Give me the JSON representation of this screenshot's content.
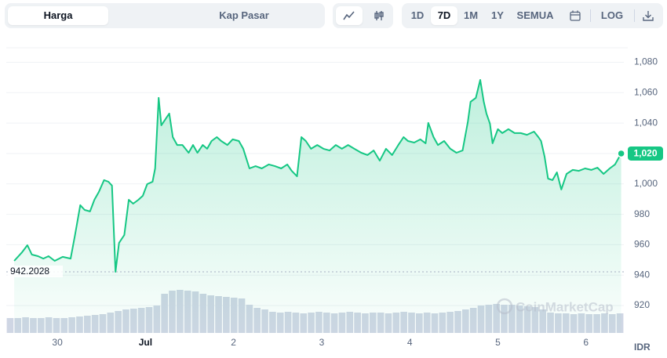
{
  "controls": {
    "tabs": [
      "Harga",
      "Kap Pasar"
    ],
    "ranges": [
      "1D",
      "7D",
      "1M",
      "1Y",
      "SEMUA"
    ],
    "log": "LOG"
  },
  "chart_data": {
    "type": "line",
    "color": "#16c784",
    "x": [
      -0.49,
      -0.4,
      -0.34,
      -0.29,
      -0.22,
      -0.16,
      -0.1,
      -0.03,
      0.06,
      0.15,
      0.2,
      0.26,
      0.31,
      0.37,
      0.42,
      0.47,
      0.53,
      0.58,
      0.62,
      0.66,
      0.7,
      0.76,
      0.81,
      0.86,
      0.92,
      0.97,
      1.02,
      1.08,
      1.11,
      1.15,
      1.18,
      1.24,
      1.27,
      1.31,
      1.36,
      1.42,
      1.49,
      1.54,
      1.59,
      1.65,
      1.7,
      1.75,
      1.81,
      1.86,
      1.93,
      1.99,
      2.06,
      2.11,
      2.18,
      2.25,
      2.32,
      2.4,
      2.47,
      2.54,
      2.61,
      2.66,
      2.72,
      2.77,
      2.82,
      2.88,
      2.95,
      3.02,
      3.09,
      3.16,
      3.23,
      3.3,
      3.37,
      3.45,
      3.52,
      3.59,
      3.66,
      3.73,
      3.8,
      3.87,
      3.93,
      3.98,
      4.05,
      4.12,
      4.18,
      4.21,
      4.27,
      4.32,
      4.39,
      4.46,
      4.53,
      4.6,
      4.66,
      4.69,
      4.75,
      4.8,
      4.84,
      4.87,
      4.91,
      4.94,
      5.0,
      5.05,
      5.12,
      5.19,
      5.26,
      5.33,
      5.41,
      5.46,
      5.49,
      5.53,
      5.57,
      5.62,
      5.67,
      5.72,
      5.78,
      5.85,
      5.92,
      5.99,
      6.06,
      6.13,
      6.2,
      6.27,
      6.33,
      6.4
    ],
    "values": [
      949.4,
      955.1,
      959.7,
      953.5,
      952.5,
      950.9,
      952.5,
      949.4,
      952.0,
      950.9,
      966.4,
      986.0,
      982.9,
      981.9,
      989.6,
      994.7,
      1002.5,
      1001.4,
      998.9,
      942.2028,
      961.2,
      966.4,
      989.6,
      987.0,
      989.6,
      992.2,
      999.9,
      1001.4,
      1010.2,
      1056.6,
      1038.5,
      1043.7,
      1046.3,
      1030.8,
      1025.6,
      1025.6,
      1020.5,
      1025.6,
      1020.5,
      1025.6,
      1023.1,
      1028.2,
      1030.8,
      1028.2,
      1025.6,
      1029.3,
      1028.2,
      1023.1,
      1010.2,
      1011.7,
      1010.2,
      1012.8,
      1011.7,
      1010.2,
      1012.8,
      1008.6,
      1005.0,
      1030.8,
      1028.2,
      1023.1,
      1025.6,
      1023.1,
      1022.0,
      1025.6,
      1023.1,
      1025.6,
      1023.1,
      1020.5,
      1019.0,
      1022.0,
      1015.3,
      1023.1,
      1019.0,
      1025.6,
      1030.8,
      1028.2,
      1027.2,
      1029.3,
      1026.7,
      1040.1,
      1030.8,
      1025.6,
      1028.2,
      1023.1,
      1020.5,
      1022.0,
      1041.1,
      1054.0,
      1056.6,
      1068.4,
      1054.0,
      1046.3,
      1039.6,
      1026.7,
      1036.0,
      1033.4,
      1036.0,
      1033.4,
      1033.4,
      1032.3,
      1034.4,
      1030.8,
      1028.2,
      1017.9,
      1003.5,
      1002.5,
      1007.6,
      996.3,
      1006.6,
      1009.2,
      1008.6,
      1010.2,
      1009.2,
      1010.7,
      1006.6,
      1010.2,
      1012.8,
      1020
    ],
    "xlim": [
      -0.58,
      6.43
    ],
    "xticks": [
      {
        "value": 0,
        "label": "30"
      },
      {
        "value": 1,
        "label": "Jul"
      },
      2,
      3,
      4,
      5,
      6
    ],
    "ylim": [
      902,
      1089
    ],
    "yticks": [
      920,
      940,
      960,
      980,
      {
        "value": 1000,
        "label": "1,000"
      },
      {
        "value": 1020,
        "label": "1,020"
      },
      {
        "value": 1040,
        "label": "1,040"
      },
      {
        "value": 1060,
        "label": "1,060"
      },
      {
        "value": 1080,
        "label": "1,080"
      }
    ],
    "grid": true,
    "min_line": 942.2028,
    "last_price": {
      "value": 1020,
      "label": "1,020"
    },
    "currency": "IDR",
    "watermark": "CoinMarketCap",
    "y2lim": [
      0,
      100
    ],
    "volume": {
      "axis": "y2",
      "color": "#cfd6e4",
      "values": [
        19,
        19,
        20,
        19,
        19,
        20,
        19,
        19,
        20,
        21,
        22,
        23,
        24,
        26,
        28,
        30,
        31,
        32,
        33,
        35,
        50,
        54,
        55,
        54,
        53,
        50,
        48,
        47,
        46,
        45,
        44,
        36,
        32,
        30,
        27,
        26,
        27,
        26,
        25,
        26,
        27,
        26,
        25,
        26,
        27,
        26,
        25,
        26,
        26,
        25,
        26,
        27,
        26,
        25,
        26,
        25,
        26,
        27,
        28,
        30,
        32,
        35,
        36,
        37,
        36,
        36,
        35,
        34,
        33,
        30,
        26,
        25,
        25,
        24,
        25,
        24,
        24,
        25,
        24,
        25
      ]
    }
  }
}
